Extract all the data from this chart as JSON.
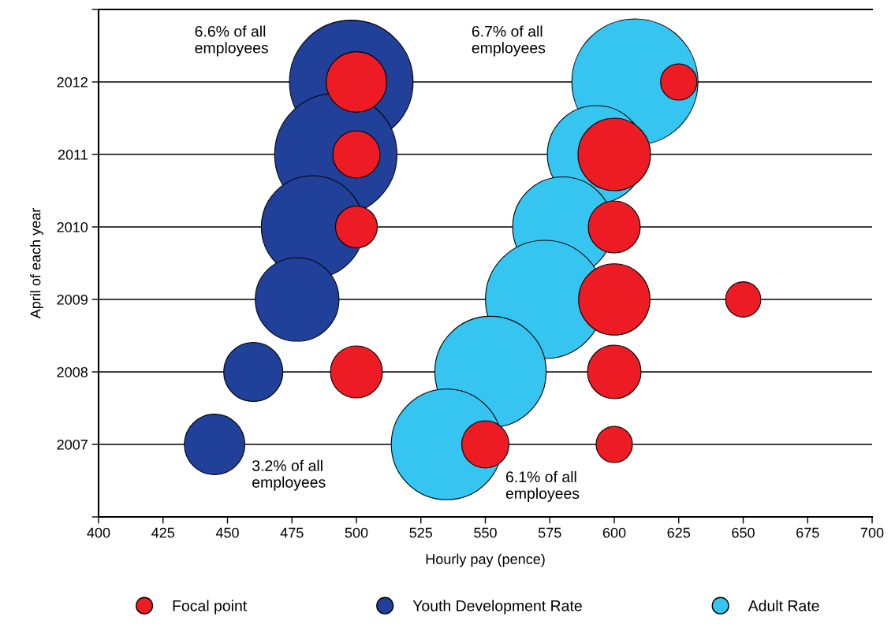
{
  "chart_data": {
    "type": "bubble",
    "xlabel": "Hourly pay (pence)",
    "ylabel": "April of each year",
    "xlim": [
      400,
      700
    ],
    "xticks": [
      400,
      425,
      450,
      475,
      500,
      525,
      550,
      575,
      600,
      625,
      650,
      675,
      700
    ],
    "ylim": [
      2006,
      2013
    ],
    "yticks": [
      {
        "value": 2006,
        "label": null
      },
      2007,
      2008,
      2009,
      2010,
      2011,
      2012,
      {
        "value": 2013,
        "label": null
      }
    ],
    "grid": "y",
    "legend": "bottom",
    "series": [
      {
        "name": "Focal point",
        "color": "#ed1c24",
        "x": [
          500,
          625,
          500,
          600,
          500,
          600,
          600,
          650,
          500,
          600,
          550,
          600
        ],
        "values": [
          2012,
          2012,
          2011,
          2011,
          2010,
          2010,
          2009,
          2009,
          2008,
          2008,
          2007,
          2007
        ],
        "sizes": [
          0.23,
          0.083,
          0.14,
          0.33,
          0.11,
          0.17,
          0.32,
          0.078,
          0.17,
          0.18,
          0.14,
          0.083
        ]
      },
      {
        "name": "Youth Development Rate",
        "color": "#21409a",
        "x": [
          498,
          492,
          483,
          477,
          460,
          445
        ],
        "values": [
          2012,
          2011,
          2010,
          2009,
          2008,
          2007
        ],
        "sizes": [
          0.96,
          0.94,
          0.66,
          0.44,
          0.22,
          0.23
        ]
      },
      {
        "name": "Adult Rate",
        "color": "#36c5f0",
        "x": [
          608,
          593,
          580,
          573,
          552,
          535
        ],
        "values": [
          2012,
          2011,
          2010,
          2009,
          2008,
          2007
        ],
        "sizes": [
          1,
          0.6,
          0.63,
          0.88,
          0.78,
          0.77
        ]
      }
    ],
    "annotations": [
      "6.6% of all\nemployees",
      "6.7% of all\nemployees",
      "3.2% of all\nemployees",
      "6.1% of all\nemployees"
    ]
  }
}
